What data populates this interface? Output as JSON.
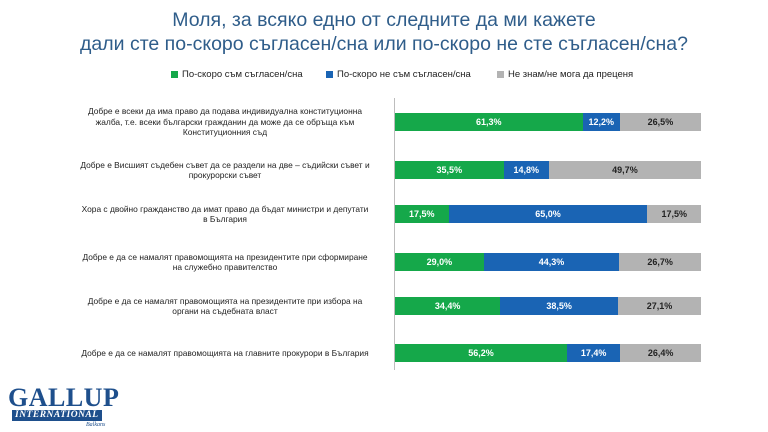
{
  "title_line1": "Моля, за всяко едно от следните да ми кажете",
  "title_line2": "дали сте по-скоро съгласен/сна или по-скоро не сте съгласен/сна?",
  "logo": {
    "main": "GALLUP",
    "sub": "INTERNATIONAL",
    "small": "Balkans"
  },
  "colors": {
    "agree": "#15a84a",
    "disagree": "#1a64b4",
    "dont_know": "#b3b3b3"
  },
  "chart_data": {
    "type": "bar",
    "orientation": "horizontal",
    "stacked": true,
    "categories": [
      "Добре е всеки да има право да подава индивидуална конституционна жалба, т.е. всеки български гражданин да може да се обръща към Конституционния съд",
      "Добре е Висшият съдебен съвет да се раздели на две – съдийски съвет и прокурорски съвет",
      "Хора с двойно гражданство да имат право да бъдат министри и депутати в България",
      "Добре е да се намалят правомощията на президентите при сформиране на служебно правителство",
      "Добре е да се намалят правомощията на президентите при избора на органи на съдебната власт",
      "Добре е да се намалят правомощията на главните прокурори в България"
    ],
    "category_lines": [
      [
        "Добре е всеки да има право да подава индивидуална конституционна",
        "жалба, т.е. всеки български гражданин да може да се обръща към",
        "Конституционния съд"
      ],
      [
        "Добре е Висшият съдебен съвет да се раздели на две – съдийски съвет и",
        "прокурорски съвет"
      ],
      [
        "Хора с двойно гражданство да имат право да бъдат министри и депутати",
        "в България"
      ],
      [
        "Добре е да се намалят правомощията на президентите при сформиране",
        "на служебно правителство"
      ],
      [
        "Добре е да се намалят правомощията на президентите при избора на",
        "органи на съдебната власт"
      ],
      [
        "Добре е да се намалят правомощията на главните прокурори в България"
      ]
    ],
    "series": [
      {
        "name": "По-скоро съм съгласен/сна",
        "values": [
          61.3,
          35.5,
          17.5,
          29.0,
          34.4,
          56.2
        ],
        "labels": [
          "61,3%",
          "35,5%",
          "17,5%",
          "29,0%",
          "34,4%",
          "56,2%"
        ]
      },
      {
        "name": "По-скоро не съм съгласен/сна",
        "values": [
          12.2,
          14.8,
          65.0,
          44.3,
          38.5,
          17.4
        ],
        "labels": [
          "12,2%",
          "14,8%",
          "65,0%",
          "44,3%",
          "38,5%",
          "17,4%"
        ]
      },
      {
        "name": "Не знам/не мога да преценя",
        "values": [
          26.5,
          49.7,
          17.5,
          26.7,
          27.1,
          26.4
        ],
        "labels": [
          "26,5%",
          "49,7%",
          "17,5%",
          "26,7%",
          "27,1%",
          "26,4%"
        ]
      }
    ],
    "xlim": [
      0,
      100
    ],
    "legend_position": "top",
    "grid": false
  }
}
